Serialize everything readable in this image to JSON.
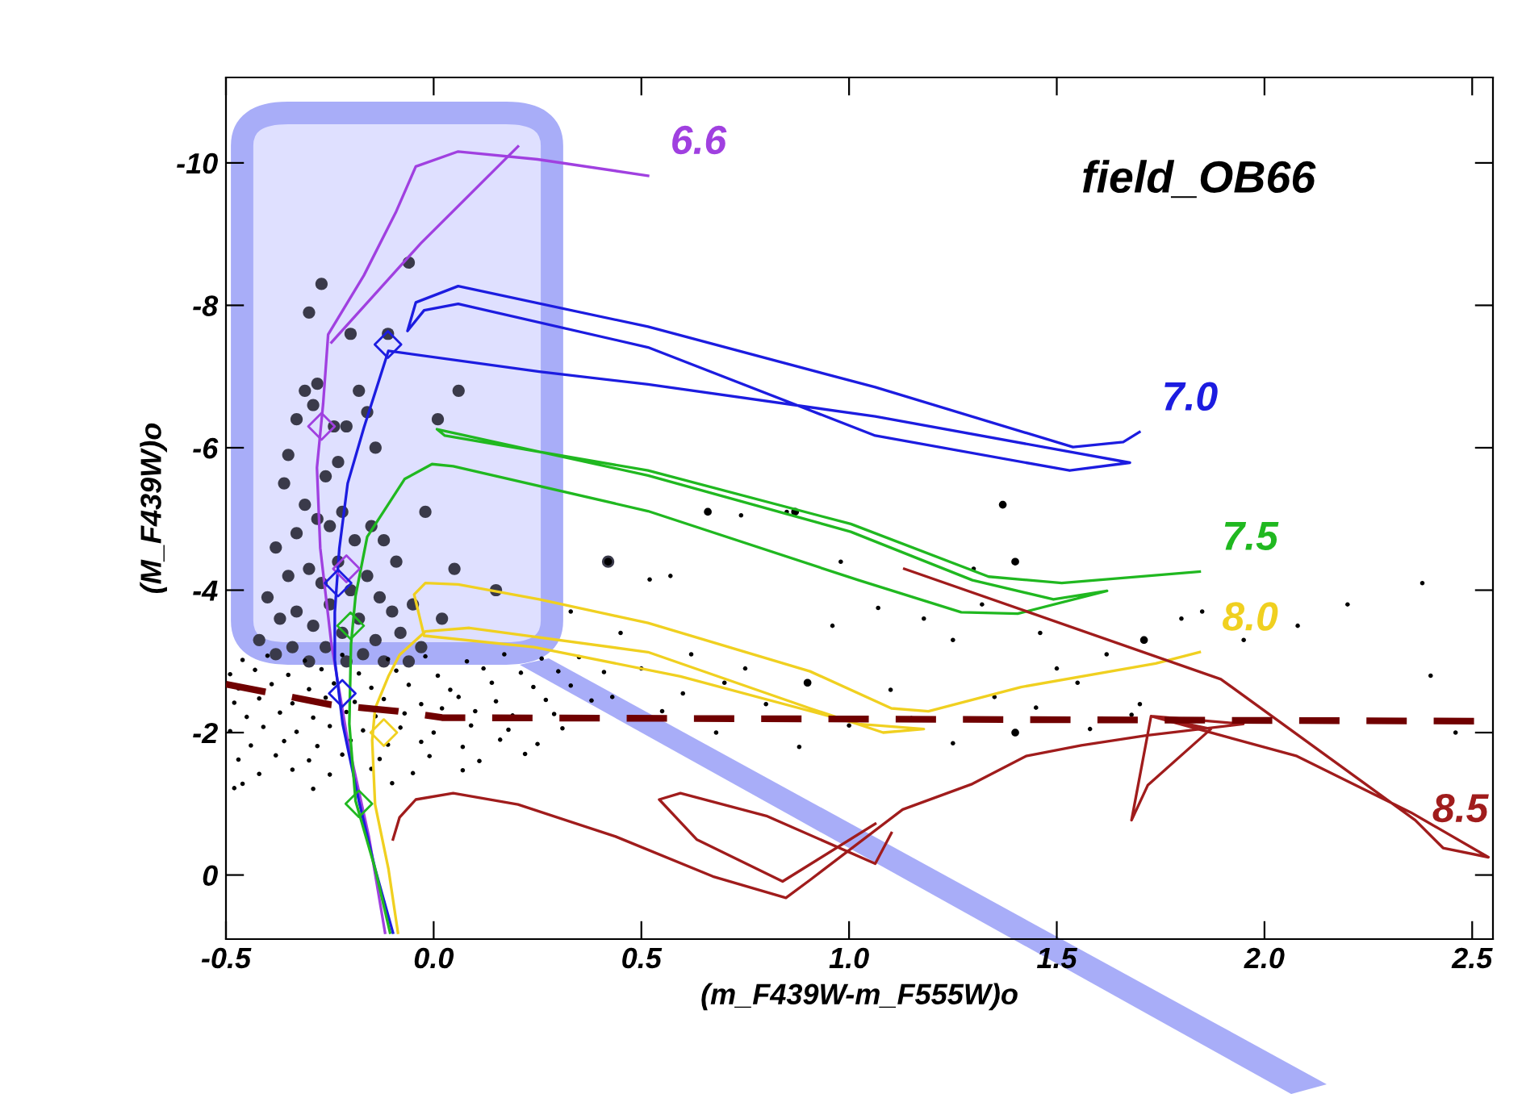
{
  "chart_data": {
    "type": "line",
    "xlabel": "(m_F439W-m_F555W)o",
    "ylabel": "(M_F439W)o",
    "annotations": [
      "field_OB66"
    ],
    "xlim": [
      -0.5,
      2.55
    ],
    "ylim": [
      0.9,
      -11.2
    ],
    "xticks": [
      -0.5,
      {
        "value": 0,
        "label": "0.0"
      },
      0.5,
      {
        "value": 1,
        "label": "1.0"
      },
      1.5,
      {
        "value": 2,
        "label": "2.0"
      },
      2.5
    ],
    "yticks": [
      -10,
      -8,
      -6,
      -4,
      -2,
      0
    ],
    "grid": false,
    "legend": false,
    "series": [
      {
        "type": "scatter",
        "color": "#3a3a4a",
        "marker": "circle",
        "x": [
          -0.27,
          -0.06,
          -0.3,
          -0.2,
          -0.11,
          -0.28,
          -0.31,
          -0.29,
          -0.33,
          -0.24,
          -0.21,
          -0.18,
          -0.16,
          -0.14,
          0.01,
          0.06,
          -0.36,
          -0.31,
          -0.28,
          -0.33,
          -0.25,
          -0.22,
          -0.19,
          -0.15,
          -0.12,
          -0.09,
          -0.02,
          0.05,
          -0.38,
          -0.35,
          -0.3,
          -0.27,
          -0.23,
          -0.2,
          -0.16,
          -0.13,
          -0.1,
          -0.05,
          -0.4,
          -0.37,
          -0.33,
          -0.29,
          -0.25,
          -0.22,
          -0.18,
          -0.14,
          -0.08,
          -0.03,
          -0.42,
          -0.38,
          -0.34,
          -0.3,
          -0.26,
          -0.21,
          -0.17,
          -0.12,
          -0.06,
          0.02,
          0.15,
          0.42,
          -0.35,
          -0.26,
          -0.23
        ],
        "values": [
          -8.3,
          -8.6,
          -7.9,
          -7.6,
          -7.6,
          -6.9,
          -6.8,
          -6.6,
          -6.4,
          -6.3,
          -6.3,
          -6.8,
          -6.5,
          -6.0,
          -6.4,
          -6.8,
          -5.5,
          -5.2,
          -5.0,
          -4.8,
          -4.9,
          -5.1,
          -4.7,
          -4.9,
          -4.7,
          -4.4,
          -5.1,
          -4.3,
          -4.6,
          -4.2,
          -4.3,
          -4.1,
          -4.4,
          -4.0,
          -4.2,
          -3.9,
          -3.7,
          -3.8,
          -3.9,
          -3.6,
          -3.7,
          -3.5,
          -3.8,
          -3.4,
          -3.6,
          -3.3,
          -3.4,
          -3.2,
          -3.3,
          -3.1,
          -3.2,
          -3.0,
          -3.2,
          -3.0,
          -3.1,
          -3.0,
          -3.0,
          -3.6,
          -4.0,
          -4.4,
          -5.9,
          -5.6,
          -5.8
        ]
      },
      {
        "type": "scatter",
        "color": "#000000",
        "marker": "circle",
        "x": [
          0.66,
          0.87,
          1.37,
          1.4,
          1.71,
          1.4,
          0.9,
          0.42
        ],
        "values": [
          -5.1,
          -5.1,
          -5.2,
          -4.4,
          -3.3,
          -2.0,
          -2.7,
          -4.4
        ]
      },
      {
        "type": "scatter",
        "color": "#000000",
        "marker": "circle",
        "x": [
          0.43,
          0.62,
          0.75,
          0.96,
          1.1,
          1.25,
          1.32,
          1.46,
          1.55,
          1.62,
          1.7,
          1.8,
          1.85,
          1.95,
          2.08,
          2.2,
          2.38,
          2.4,
          0.5,
          0.55,
          0.68,
          0.8,
          0.88,
          1.0,
          1.15,
          1.25,
          1.35,
          1.45,
          1.58,
          1.5,
          0.7,
          0.6,
          0.45,
          0.33,
          0.52,
          0.57,
          0.74,
          0.85,
          0.98,
          1.3,
          1.07,
          1.18,
          1.68,
          2.46,
          -0.46,
          -0.4,
          -0.31,
          -0.22,
          -0.11,
          -0.02,
          0.08,
          0.17,
          0.26,
          0.35,
          -0.49,
          -0.43,
          -0.35,
          -0.27,
          -0.18,
          -0.09,
          0.01,
          0.12,
          0.21,
          0.3,
          0.41,
          -0.47,
          -0.39,
          -0.3,
          -0.24,
          -0.15,
          -0.06,
          0.04,
          0.14,
          0.24,
          0.33,
          -0.48,
          -0.42,
          -0.34,
          -0.26,
          -0.19,
          -0.12,
          -0.03,
          0.06,
          0.15,
          0.27,
          0.38,
          -0.45,
          -0.37,
          -0.29,
          -0.21,
          -0.14,
          -0.07,
          0.02,
          0.1,
          0.19,
          0.29,
          -0.49,
          -0.41,
          -0.33,
          -0.25,
          -0.17,
          -0.08,
          0.0,
          0.09,
          0.18,
          0.31,
          -0.44,
          -0.36,
          -0.28,
          -0.2,
          -0.11,
          -0.03,
          0.07,
          0.16,
          0.25,
          -0.47,
          -0.38,
          -0.3,
          -0.22,
          -0.13,
          -0.01,
          0.11,
          0.22,
          -0.42,
          -0.34,
          -0.25,
          -0.15,
          -0.05,
          0.07,
          -0.48,
          -0.46,
          -0.29,
          -0.1
        ],
        "values": [
          -2.5,
          -3.1,
          -2.9,
          -3.5,
          -2.6,
          -3.3,
          -3.8,
          -3.4,
          -2.7,
          -3.1,
          -2.4,
          -3.6,
          -3.7,
          -3.3,
          -3.5,
          -3.8,
          -4.1,
          -2.8,
          -2.9,
          -2.3,
          -2.0,
          -2.4,
          -1.8,
          -2.1,
          -2.2,
          -1.85,
          -2.5,
          -2.35,
          -2.05,
          -2.9,
          -2.7,
          -2.55,
          -3.4,
          -3.7,
          -4.15,
          -4.2,
          -5.05,
          -5.1,
          -4.4,
          -4.3,
          -3.75,
          -3.6,
          -2.25,
          -2.0,
          -3.02,
          -3.08,
          -3.01,
          -3.09,
          -3.03,
          -3.07,
          -3.0,
          -3.1,
          -3.04,
          -3.06,
          -2.82,
          -2.88,
          -2.81,
          -2.89,
          -2.83,
          -2.87,
          -2.8,
          -2.9,
          -2.84,
          -2.86,
          -2.85,
          -2.62,
          -2.68,
          -2.61,
          -2.69,
          -2.63,
          -2.67,
          -2.6,
          -2.7,
          -2.64,
          -2.66,
          -2.42,
          -2.48,
          -2.41,
          -2.49,
          -2.43,
          -2.47,
          -2.4,
          -2.5,
          -2.44,
          -2.46,
          -2.45,
          -2.22,
          -2.28,
          -2.21,
          -2.29,
          -2.23,
          -2.27,
          -2.34,
          -2.3,
          -2.24,
          -2.26,
          -2.02,
          -2.08,
          -2.01,
          -2.09,
          -2.03,
          -2.07,
          -2.0,
          -2.1,
          -2.04,
          -2.06,
          -1.82,
          -1.88,
          -1.81,
          -1.89,
          -1.83,
          -1.87,
          -1.8,
          -1.9,
          -1.84,
          -1.62,
          -1.68,
          -1.61,
          -1.69,
          -1.63,
          -1.67,
          -1.6,
          -1.7,
          -1.42,
          -1.48,
          -1.41,
          -1.49,
          -1.43,
          -1.47,
          -1.22,
          -1.28,
          -1.21,
          -1.29
        ]
      },
      {
        "color": "#a040e0",
        "line_style": "solid",
        "x": [
          -0.246,
          -0.031,
          0.203
        ],
        "values": [
          -7.48,
          -8.87,
          -10.23
        ]
      },
      {
        "name": "6.6",
        "color": "#a040e0",
        "line_style": "solid",
        "x": [
          -0.117,
          -0.156,
          -0.207,
          -0.246,
          -0.273,
          -0.281,
          -0.266,
          -0.254,
          -0.168,
          -0.09,
          -0.043,
          0.059,
          0.25,
          0.516
        ],
        "values": [
          0.81,
          -0.54,
          -1.89,
          -3.24,
          -4.59,
          -5.72,
          -6.62,
          -7.59,
          -8.42,
          -9.32,
          -9.95,
          -10.16,
          -10.05,
          -9.82
        ]
      },
      {
        "name": "7.0",
        "color": "#1c1ce0",
        "line_style": "solid",
        "x": [
          -0.098,
          -0.141,
          -0.18,
          -0.219,
          -0.238,
          -0.238,
          -0.227,
          -0.207,
          -0.168,
          -0.109,
          0.254,
          0.516,
          1.063,
          1.676,
          1.531,
          1.063,
          0.516,
          0.059,
          -0.023,
          -0.063,
          -0.043,
          0.059,
          0.516,
          1.063,
          1.539,
          1.66,
          1.699
        ],
        "values": [
          0.81,
          -0.09,
          -1.04,
          -2.12,
          -3.02,
          -3.69,
          -4.59,
          -5.5,
          -6.28,
          -7.36,
          -7.07,
          -6.89,
          -6.44,
          -5.79,
          -5.68,
          -6.17,
          -7.41,
          -8.02,
          -7.93,
          -7.64,
          -8.04,
          -8.27,
          -7.7,
          -6.85,
          -6.01,
          -6.08,
          -6.22
        ]
      },
      {
        "name": "7.5",
        "color": "#20b820",
        "line_style": "solid",
        "x": [
          -0.105,
          -0.141,
          -0.188,
          -0.203,
          -0.199,
          -0.188,
          -0.16,
          -0.07,
          -0.004,
          0.047,
          0.516,
          1.023,
          1.27,
          1.406,
          1.621,
          1.492,
          1.297,
          1.004,
          0.516,
          0.008,
          0.027,
          0.516,
          1.004,
          1.336,
          1.512,
          1.844
        ],
        "values": [
          0.81,
          -0.09,
          -1.04,
          -2.12,
          -3.24,
          -3.92,
          -4.75,
          -5.56,
          -5.77,
          -5.74,
          -5.11,
          -4.14,
          -3.69,
          -3.67,
          -3.99,
          -3.87,
          -4.14,
          -4.82,
          -5.61,
          -6.26,
          -6.17,
          -5.68,
          -4.93,
          -4.19,
          -4.1,
          -4.26
        ]
      },
      {
        "name": "8.0",
        "color": "#f0d020",
        "line_style": "solid",
        "x": [
          -0.086,
          -0.109,
          -0.141,
          -0.148,
          -0.141,
          -0.109,
          -0.082,
          -0.02,
          0.086,
          0.516,
          0.906,
          1.082,
          1.18,
          1.023,
          0.594,
          0.242,
          -0.023,
          -0.047,
          -0.02,
          0.059,
          0.254,
          0.516,
          0.906,
          1.102,
          1.191,
          1.414,
          1.738,
          1.844
        ],
        "values": [
          0.81,
          -0.09,
          -0.99,
          -1.89,
          -2.34,
          -2.79,
          -3.09,
          -3.42,
          -3.47,
          -3.13,
          -2.34,
          -2.0,
          -2.05,
          -2.12,
          -2.79,
          -3.2,
          -3.36,
          -3.94,
          -4.1,
          -4.08,
          -3.87,
          -3.54,
          -2.86,
          -2.34,
          -2.3,
          -2.64,
          -2.97,
          -3.13
        ]
      },
      {
        "color": "#a01c1c",
        "line_style": "solid",
        "x": [
          1.063,
          0.84,
          0.633,
          0.543,
          0.594,
          0.801,
          1.063,
          1.102
        ],
        "values": [
          -0.72,
          0.09,
          -0.5,
          -1.06,
          -1.15,
          -0.83,
          -0.16,
          -0.59
        ]
      },
      {
        "name": "8.5",
        "color": "#a01c1c",
        "line_style": "solid",
        "x": [
          -0.098,
          -0.082,
          -0.043,
          0.047,
          0.203,
          0.438,
          0.672,
          0.848,
          0.906,
          1.129,
          1.297,
          1.426,
          1.559,
          1.715,
          1.949,
          1.727,
          1.68,
          1.719,
          1.871,
          1.727,
          2.078,
          2.352,
          2.539,
          2.43,
          2.363,
          1.895,
          1.133
        ],
        "values": [
          -0.5,
          -0.81,
          -1.06,
          -1.15,
          -0.99,
          -0.54,
          0.02,
          0.32,
          0.07,
          -0.92,
          -1.28,
          -1.67,
          -1.82,
          -1.96,
          -2.12,
          -2.23,
          -0.77,
          -1.26,
          -2.05,
          -2.23,
          -1.67,
          -0.88,
          -0.25,
          -0.38,
          -0.77,
          -2.75,
          -4.3
        ]
      },
      {
        "color": "#700000",
        "line_style": "dashed",
        "x": [
          -0.5,
          -0.246,
          -0.086,
          0.02,
          2.55
        ],
        "values": [
          -2.68,
          -2.39,
          -2.3,
          -2.21,
          -2.16
        ]
      },
      {
        "type": "scatter",
        "marker": "diamond",
        "color": "#a040e0",
        "x": [
          -0.27,
          -0.21
        ],
        "values": [
          -6.3,
          -4.3
        ]
      },
      {
        "type": "scatter",
        "marker": "diamond",
        "color": "#1c1ce0",
        "x": [
          -0.11,
          -0.23,
          -0.22
        ],
        "values": [
          -7.45,
          -4.1,
          -2.55
        ]
      },
      {
        "type": "scatter",
        "marker": "diamond",
        "color": "#20b820",
        "x": [
          -0.18,
          -0.2
        ],
        "values": [
          -1.0,
          -3.5
        ]
      },
      {
        "type": "scatter",
        "marker": "diamond",
        "color": "#f0d020",
        "x": [
          -0.12
        ],
        "values": [
          -2.0
        ]
      }
    ]
  }
}
